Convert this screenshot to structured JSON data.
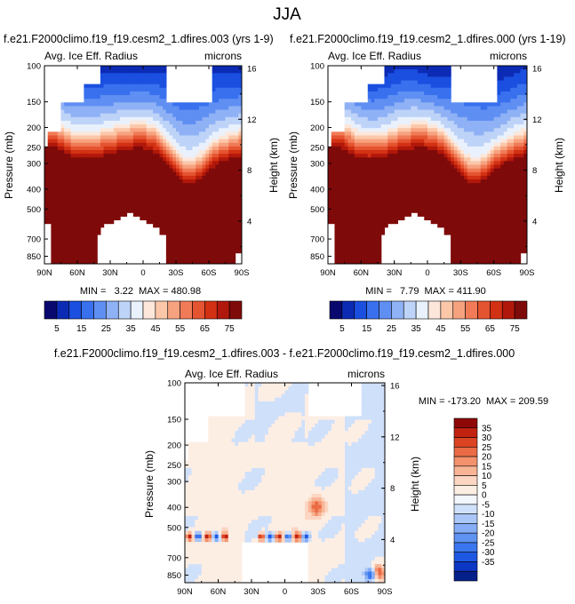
{
  "page": {
    "title": "JJA"
  },
  "colors": {
    "abs_scale": [
      "#08086e",
      "#0c2bb4",
      "#1a4fe0",
      "#3870ee",
      "#5f8ff2",
      "#8fb1f5",
      "#bed3f8",
      "#e9f1fc",
      "#fde7da",
      "#fcc7a9",
      "#f7a27f",
      "#f17b57",
      "#e55431",
      "#d23113",
      "#b1180b",
      "#7f0a0a"
    ],
    "diff_scale": [
      "#06208a",
      "#0c37c4",
      "#1d58e3",
      "#3a76ee",
      "#5e93f2",
      "#86adf5",
      "#aac6f7",
      "#cfe0fa",
      "#f2f6fd",
      "#fdeee4",
      "#fcd6c2",
      "#f8b596",
      "#f3926d",
      "#ea6b45",
      "#db4423",
      "#c32211",
      "#8f0808"
    ]
  },
  "chart_data": [
    {
      "type": "heatmap",
      "title": "f.e21.F2000climo.f19_f19.cesm2_1.dfires.003 (yrs 1-9)",
      "left_string": "Avg. Ice Eff. Radius",
      "right_string": "microns",
      "ylabel": "Pressure (mb)",
      "ylabel_right": "Height (km)",
      "x_ticks": [
        "90N",
        "60N",
        "30N",
        "0",
        "30S",
        "60S",
        "90S"
      ],
      "y_ticks": [
        "100",
        "150",
        "200",
        "250",
        "300",
        "400",
        "500",
        "700",
        "850"
      ],
      "y2_ticks": [
        "16",
        "12",
        "8",
        "4"
      ],
      "stats": "MIN =   3.22  MAX = 480.98",
      "colorbar_labels": [
        "5",
        "15",
        "25",
        "35",
        "45",
        "55",
        "65",
        "75"
      ]
    },
    {
      "type": "heatmap",
      "title": "f.e21.F2000climo.f19_f19.cesm2_1.dfires.000 (yrs 1-19)",
      "left_string": "Avg. Ice Eff. Radius",
      "right_string": "microns",
      "ylabel": "Pressure (mb)",
      "ylabel_right": "Height (km)",
      "x_ticks": [
        "90N",
        "60N",
        "30N",
        "0",
        "30S",
        "60S",
        "90S"
      ],
      "y_ticks": [
        "100",
        "150",
        "200",
        "250",
        "300",
        "400",
        "500",
        "700",
        "850"
      ],
      "y2_ticks": [
        "16",
        "12",
        "8",
        "4"
      ],
      "stats": "MIN =   7.79  MAX = 411.90",
      "colorbar_labels": [
        "5",
        "15",
        "25",
        "35",
        "45",
        "55",
        "65",
        "75"
      ]
    },
    {
      "type": "heatmap",
      "title": "f.e21.F2000climo.f19_f19.cesm2_1.dfires.003 - f.e21.F2000climo.f19_f19.cesm2_1.dfires.000",
      "left_string": "Avg. Ice Eff. Radius",
      "right_string": "microns",
      "ylabel": "Pressure (mb)",
      "ylabel_right": "Height (km)",
      "x_ticks": [
        "90N",
        "60N",
        "30N",
        "0",
        "30S",
        "60S",
        "90S"
      ],
      "y_ticks": [
        "100",
        "150",
        "200",
        "250",
        "300",
        "400",
        "500",
        "700",
        "850"
      ],
      "y2_ticks": [
        "16",
        "12",
        "8",
        "4"
      ],
      "stats": "MIN = -173.20  MAX = 209.59",
      "colorbar_labels": [
        "35",
        "30",
        "25",
        "20",
        "15",
        "10",
        "5",
        "0",
        "-5",
        "-10",
        "-15",
        "-20",
        "-25",
        "-30",
        "-35"
      ]
    }
  ]
}
